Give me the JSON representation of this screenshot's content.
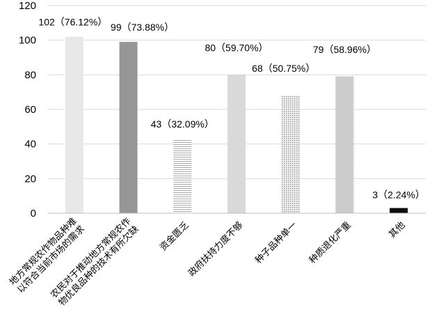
{
  "chart_data": {
    "type": "bar",
    "categories": [
      [
        "地方常规农作物品种难",
        "以符合当前市场的需求"
      ],
      [
        "农民对于推动地方常规农作",
        "物优良品种的技术有所欠缺"
      ],
      [
        "资金匮乏"
      ],
      [
        "政府扶持力度不够"
      ],
      [
        "种子品种单一"
      ],
      [
        "种质退化严重"
      ],
      [
        "其他"
      ]
    ],
    "values": [
      102,
      99,
      43,
      80,
      68,
      79,
      3
    ],
    "data_labels": [
      "102（76.12%）",
      "99（73.88%）",
      "43（32.09%）",
      "80（59.70%）",
      "68（50.75%）",
      "79（58.96%）",
      "3（2.24%）"
    ],
    "bar_styles": [
      "light-solid",
      "dark-solid",
      "hlines",
      "light-solid2",
      "dots",
      "dots-dense",
      "black"
    ],
    "ylim": [
      0,
      120
    ],
    "yticks": [
      0,
      20,
      40,
      60,
      80,
      100,
      120
    ],
    "grid": true,
    "legend": "none",
    "colors": {
      "light_solid": "#e8e8e8",
      "dark_solid": "#969696",
      "light_solid2": "#d9d9d9",
      "pattern": "#a6a6a6",
      "black": "#0d0d0d",
      "grid": "#d9d9d9"
    }
  }
}
